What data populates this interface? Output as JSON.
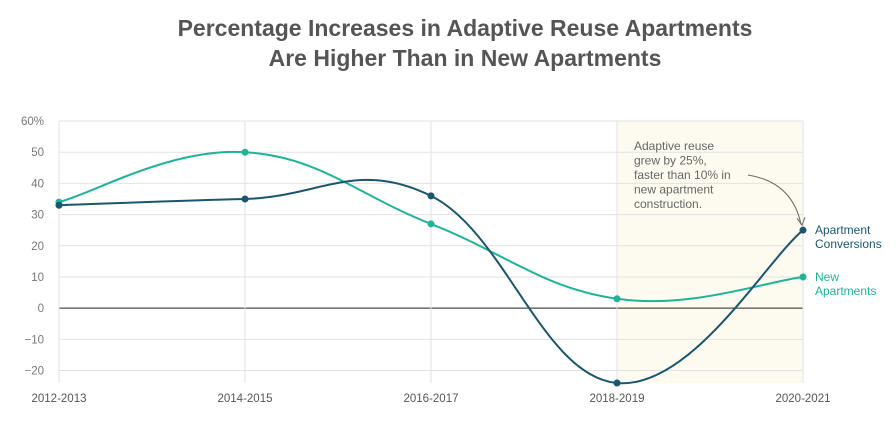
{
  "chart_data": {
    "type": "line",
    "title": [
      "Percentage Increases in Adaptive Reuse Apartments",
      "Are Higher Than in New Apartments"
    ],
    "categories": [
      "2012-2013",
      "2014-2015",
      "2016-2017",
      "2018-2019",
      "2020-2021"
    ],
    "series": [
      {
        "name": "Apartment Conversions",
        "label_lines": [
          "Apartment",
          "Conversions"
        ],
        "color": "#1b5670",
        "values": [
          33,
          35,
          36,
          -24,
          25
        ]
      },
      {
        "name": "New Apartments",
        "label_lines": [
          "New",
          "Apartments"
        ],
        "color": "#1cb59a",
        "values": [
          34,
          50,
          27,
          3,
          10
        ]
      }
    ],
    "y_ticks": [
      60,
      50,
      40,
      30,
      20,
      10,
      0,
      -10,
      -20
    ],
    "y_tick_labels": [
      "60%",
      "50",
      "40",
      "30",
      "20",
      "10",
      "0",
      "−10",
      "−20"
    ],
    "ylim": [
      -24,
      60
    ],
    "highlight_range": [
      "2018-2019",
      "2020-2021"
    ],
    "highlight_color": "#fdfbf0",
    "annotation": {
      "lines": [
        "Adaptive reuse",
        "grew by 25%,",
        "faster than 10% in",
        "new apartment",
        "construction."
      ]
    },
    "grid": true
  }
}
